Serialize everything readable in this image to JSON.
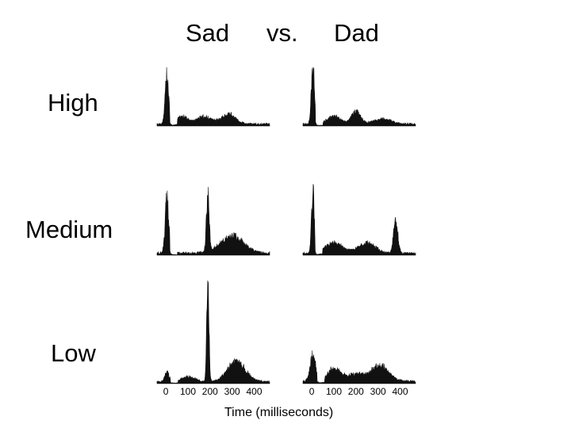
{
  "header": {
    "left": "Sad",
    "middle": "vs.",
    "right": "Dad"
  },
  "rows": [
    "High",
    "Medium",
    "Low"
  ],
  "x_axis_label": "Time (milliseconds)",
  "x_ticks": [
    "0",
    "100",
    "200",
    "300",
    "400"
  ],
  "chart_data": {
    "type": "area",
    "x_range_ms": [
      -40,
      470
    ],
    "y_range": [
      0,
      1
    ],
    "ink_color": "#111111",
    "panels": [
      {
        "column": "Sad",
        "row": "High",
        "peaks": [
          [
            5,
            0.95,
            8
          ],
          [
            75,
            0.15,
            25
          ],
          [
            175,
            0.15,
            35
          ],
          [
            285,
            0.2,
            30
          ]
        ],
        "noise": 0.04
      },
      {
        "column": "Dad",
        "row": "High",
        "peaks": [
          [
            5,
            1.2,
            7
          ],
          [
            100,
            0.15,
            30
          ],
          [
            200,
            0.25,
            20
          ],
          [
            320,
            0.1,
            40
          ]
        ],
        "noise": 0.04
      },
      {
        "column": "Sad",
        "row": "Medium",
        "peaks": [
          [
            5,
            1.1,
            8
          ],
          [
            190,
            1.3,
            6
          ],
          [
            300,
            0.35,
            50
          ]
        ],
        "noise": 0.05
      },
      {
        "column": "Dad",
        "row": "Medium",
        "peaks": [
          [
            5,
            1.25,
            6
          ],
          [
            100,
            0.2,
            40
          ],
          [
            250,
            0.2,
            40
          ],
          [
            380,
            0.6,
            10
          ]
        ],
        "noise": 0.04
      },
      {
        "column": "Sad",
        "row": "Low",
        "peaks": [
          [
            5,
            0.2,
            10
          ],
          [
            100,
            0.1,
            30
          ],
          [
            190,
            2.0,
            5
          ],
          [
            320,
            0.4,
            40
          ]
        ],
        "noise": 0.04
      },
      {
        "column": "Dad",
        "row": "Low",
        "peaks": [
          [
            5,
            0.55,
            12
          ],
          [
            100,
            0.25,
            30
          ],
          [
            200,
            0.15,
            40
          ],
          [
            310,
            0.3,
            40
          ]
        ],
        "noise": 0.05
      }
    ]
  }
}
